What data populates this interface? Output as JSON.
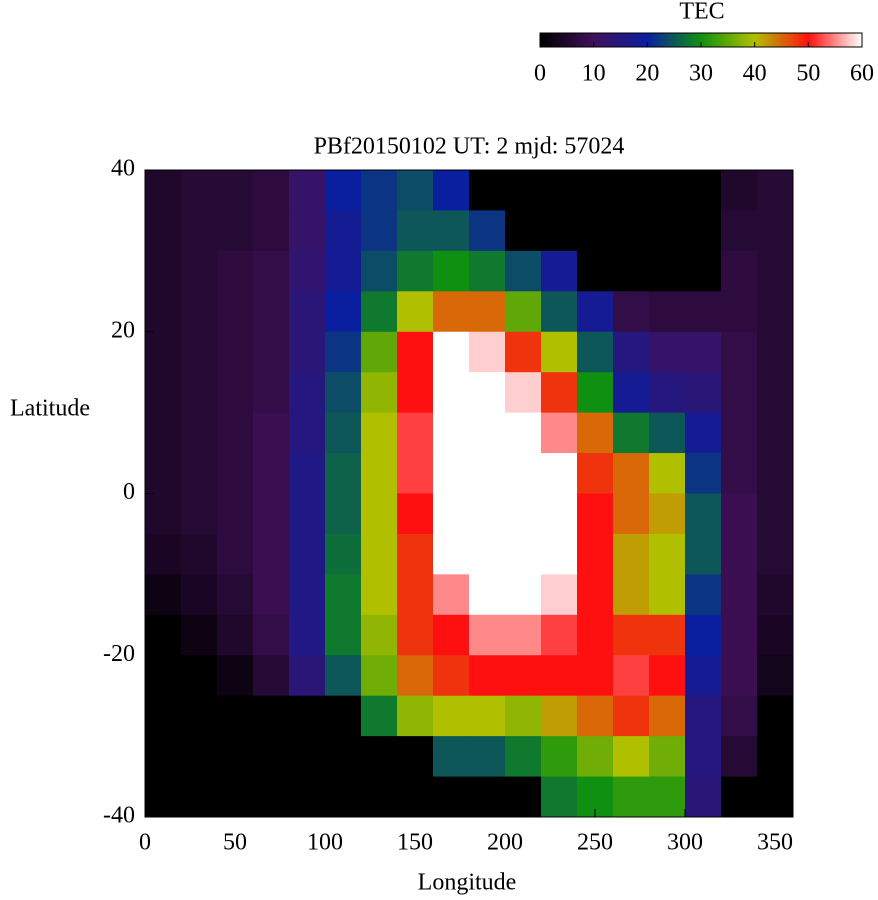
{
  "chart_data": {
    "type": "heatmap",
    "title": "PBf20150102  UT: 2  mjd: 57024",
    "xlabel": "Longitude",
    "ylabel": "Latitude",
    "colorbar_label": "TEC",
    "xlim": [
      0,
      360
    ],
    "ylim": [
      -40,
      40
    ],
    "xticks": [
      0,
      50,
      100,
      150,
      200,
      250,
      300,
      350
    ],
    "yticks": [
      -40,
      -20,
      0,
      20,
      40
    ],
    "zlim": [
      0,
      60
    ],
    "zticks": [
      0,
      10,
      20,
      30,
      40,
      50,
      60
    ],
    "colormap": [
      "#000000",
      "#40105a",
      "#0a1ea0",
      "#109010",
      "#b0c000",
      "#ff1010",
      "#ffffff"
    ],
    "x": [
      10,
      30,
      50,
      70,
      90,
      110,
      130,
      150,
      170,
      190,
      210,
      230,
      250,
      270,
      290,
      310,
      330,
      350
    ],
    "y": [
      37.5,
      32.5,
      27.5,
      22.5,
      17.5,
      12.5,
      7.5,
      2.5,
      -2.5,
      -7.5,
      -12.5,
      -17.5,
      -22.5,
      -27.5,
      -32.5,
      -37.5
    ],
    "values": [
      [
        5,
        6,
        6,
        7,
        12,
        20,
        22,
        24,
        20,
        0,
        0,
        0,
        0,
        0,
        0,
        0,
        5,
        6
      ],
      [
        5,
        6,
        6,
        7,
        12,
        18,
        22,
        25,
        25,
        22,
        0,
        0,
        0,
        0,
        0,
        0,
        6,
        6
      ],
      [
        5,
        6,
        7,
        8,
        13,
        18,
        24,
        28,
        30,
        28,
        24,
        18,
        0,
        0,
        0,
        0,
        7,
        6
      ],
      [
        5,
        6,
        7,
        8,
        14,
        20,
        28,
        40,
        45,
        45,
        35,
        25,
        18,
        8,
        7,
        7,
        7,
        6
      ],
      [
        5,
        6,
        7,
        8,
        14,
        22,
        35,
        50,
        60,
        58,
        48,
        40,
        25,
        15,
        12,
        12,
        8,
        6
      ],
      [
        5,
        6,
        7,
        8,
        15,
        24,
        38,
        50,
        60,
        60,
        58,
        48,
        30,
        18,
        15,
        14,
        8,
        6
      ],
      [
        5,
        6,
        7,
        9,
        15,
        25,
        40,
        52,
        60,
        60,
        60,
        55,
        45,
        28,
        25,
        18,
        8,
        6
      ],
      [
        5,
        6,
        7,
        9,
        16,
        26,
        40,
        52,
        60,
        60,
        60,
        60,
        48,
        45,
        40,
        22,
        8,
        6
      ],
      [
        5,
        6,
        7,
        9,
        16,
        26,
        40,
        50,
        60,
        60,
        60,
        60,
        50,
        45,
        42,
        25,
        9,
        6
      ],
      [
        4,
        5,
        7,
        9,
        16,
        27,
        40,
        48,
        60,
        60,
        60,
        60,
        50,
        42,
        40,
        25,
        9,
        6
      ],
      [
        2,
        4,
        6,
        9,
        16,
        28,
        40,
        48,
        55,
        60,
        60,
        58,
        50,
        42,
        40,
        22,
        9,
        5
      ],
      [
        0,
        2,
        5,
        8,
        16,
        28,
        38,
        48,
        50,
        55,
        55,
        52,
        50,
        48,
        48,
        20,
        9,
        4
      ],
      [
        0,
        0,
        2,
        6,
        14,
        25,
        36,
        45,
        48,
        50,
        50,
        50,
        50,
        52,
        50,
        18,
        9,
        3
      ],
      [
        0,
        0,
        0,
        0,
        0,
        0,
        28,
        38,
        40,
        40,
        38,
        42,
        45,
        48,
        45,
        15,
        8,
        0
      ],
      [
        0,
        0,
        0,
        0,
        0,
        0,
        0,
        0,
        25,
        25,
        28,
        32,
        36,
        40,
        36,
        15,
        6,
        0
      ],
      [
        0,
        0,
        0,
        0,
        0,
        0,
        0,
        0,
        0,
        0,
        0,
        28,
        30,
        32,
        32,
        14,
        0,
        0
      ]
    ]
  }
}
